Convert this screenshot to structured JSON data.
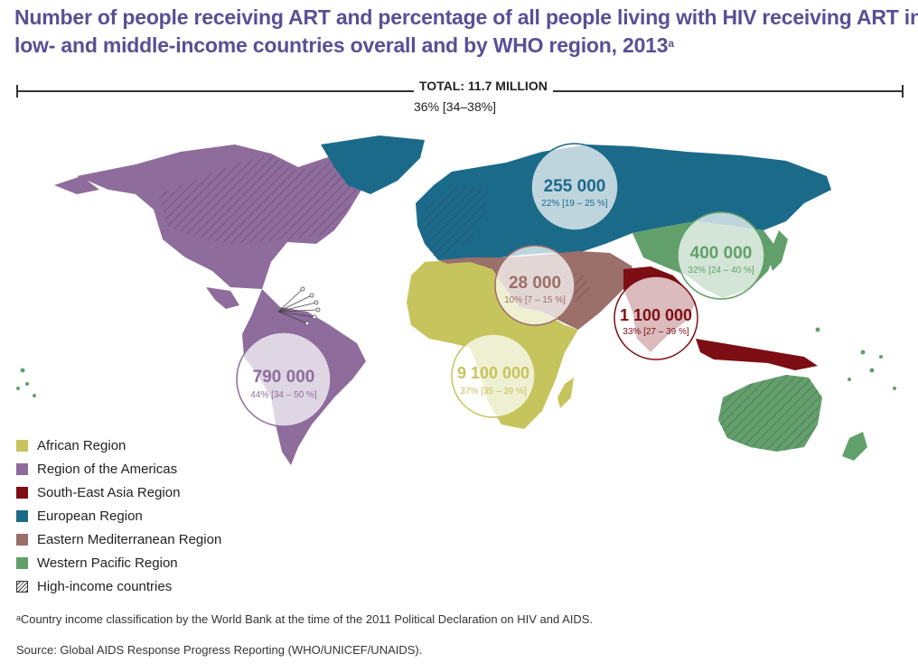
{
  "title": {
    "line1": "Number of people receiving ART and percentage of all people living with HIV receiving ART in",
    "line2": "low- and middle-income countries overall and by WHO region, 2013",
    "sup": "a"
  },
  "total": {
    "label": "TOTAL: 11.7 MILLION",
    "pct": "36% [34–38%]"
  },
  "regions": [
    {
      "id": "americas",
      "value": "790 000",
      "pct": "44% [34 – 50 %]",
      "color": "#8e6c9c"
    },
    {
      "id": "african",
      "value": "9 100 000",
      "pct": "37% [35 – 39 %]",
      "color": "#c6c45d"
    },
    {
      "id": "eastern-med",
      "value": "28 000",
      "pct": "10% [7 – 15 %]",
      "color": "#9b6f6a"
    },
    {
      "id": "european",
      "value": "255 000",
      "pct": "22% [19 – 25 %]",
      "color": "#1c6a8a"
    },
    {
      "id": "western-pacific",
      "value": "400 000",
      "pct": "32% [24 – 40 %]",
      "color": "#62a06b"
    },
    {
      "id": "south-east-asia",
      "value": "1 100 000",
      "pct": "33% [27 – 39 %]",
      "color": "#7d0e14"
    }
  ],
  "legend": [
    {
      "label": "African Region",
      "color": "#c6c45d"
    },
    {
      "label": "Region of the Americas",
      "color": "#8e6c9c"
    },
    {
      "label": "South-East Asia Region",
      "color": "#7d0e14"
    },
    {
      "label": "European Region",
      "color": "#1c6a8a"
    },
    {
      "label": "Eastern Mediterranean Region",
      "color": "#9b6f6a"
    },
    {
      "label": "Western Pacific Region",
      "color": "#62a06b"
    },
    {
      "label": "High-income countries",
      "icon": "hatch-pattern"
    }
  ],
  "footnote": "ᵃCountry income classification by the World Bank at the time of the 2011 Political Declaration on HIV and AIDS.",
  "source": "Source: Global AIDS Response Progress Reporting (WHO/UNICEF/UNAIDS)."
}
